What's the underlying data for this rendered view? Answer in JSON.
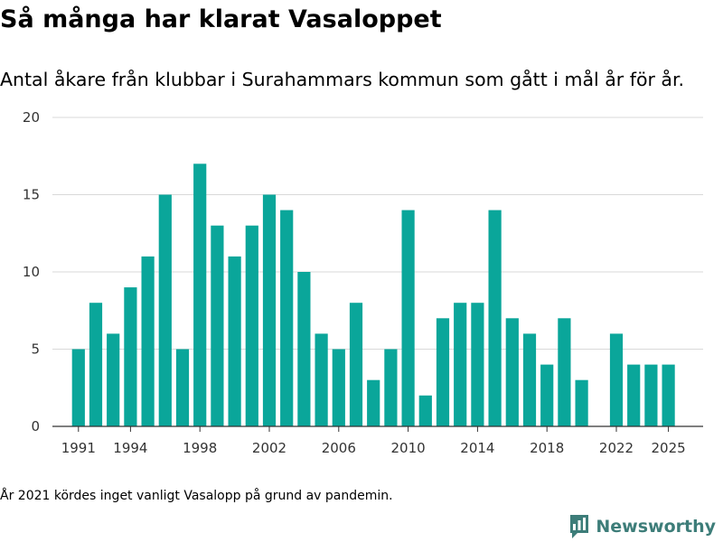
{
  "header": {
    "title": "Så många har klarat Vasaloppet",
    "subtitle": "Antal åkare från klubbar i Surahammars kommun som gått i mål år för år."
  },
  "footer": {
    "note": "År 2021 kördes inget vanligt Vasalopp på grund av pandemin.",
    "brand": "Newsworthy",
    "brand_icon": "bar-chart-logo-icon"
  },
  "colors": {
    "bar": "#0aa69a",
    "grid": "#d9d9d9",
    "axis": "#333333",
    "brand": "#3d7d79"
  },
  "chart_data": {
    "type": "bar",
    "title": "Så många har klarat Vasaloppet",
    "xlabel": "",
    "ylabel": "",
    "ylim": [
      0,
      20
    ],
    "yticks": [
      0,
      5,
      10,
      15,
      20
    ],
    "xlim": [
      1989.5,
      2027
    ],
    "xticks": [
      1991,
      1994,
      1998,
      2002,
      2006,
      2010,
      2014,
      2018,
      2022,
      2025
    ],
    "grid": true,
    "categories": [
      1991,
      1992,
      1993,
      1994,
      1995,
      1996,
      1997,
      1998,
      1999,
      2000,
      2001,
      2002,
      2003,
      2004,
      2005,
      2006,
      2007,
      2008,
      2009,
      2010,
      2011,
      2012,
      2013,
      2014,
      2015,
      2016,
      2017,
      2018,
      2019,
      2020,
      2022,
      2023,
      2024,
      2025
    ],
    "values": [
      5,
      8,
      6,
      9,
      11,
      15,
      5,
      17,
      13,
      11,
      13,
      15,
      14,
      10,
      6,
      5,
      8,
      3,
      5,
      14,
      2,
      7,
      8,
      8,
      14,
      7,
      6,
      4,
      7,
      3,
      6,
      4,
      4,
      4
    ]
  }
}
